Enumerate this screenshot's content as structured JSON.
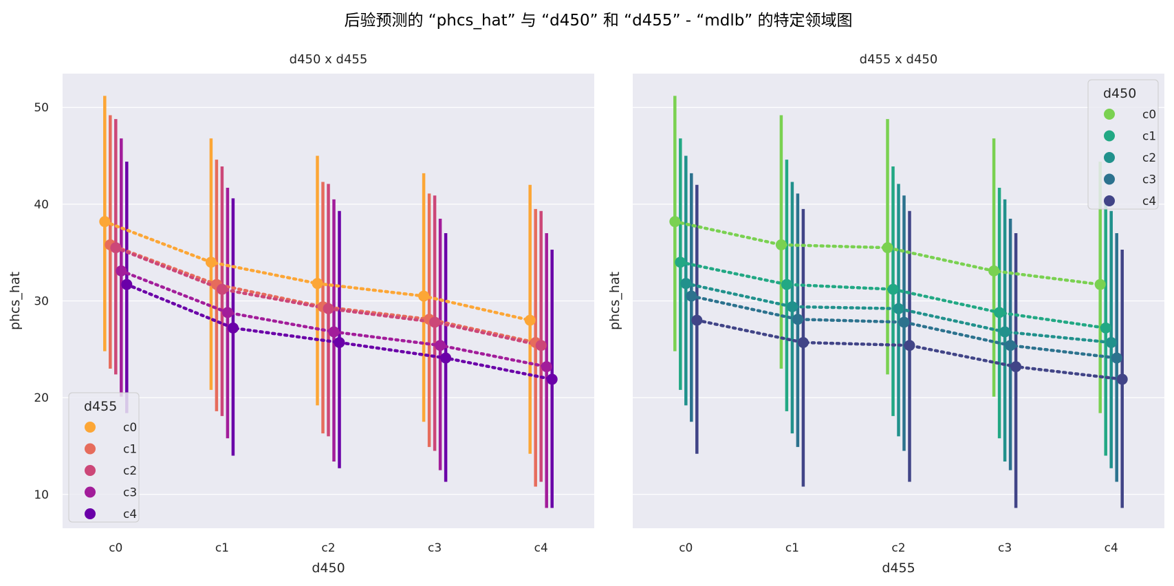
{
  "chart_data": {
    "type": "line",
    "title": "后验预测的 “phcs_hat” 与 “d450” 和 “d455” - “mdlb” 的特定领域图",
    "panels": [
      {
        "title": "d450 x d455",
        "xlabel": "d450",
        "ylabel": "phcs_hat",
        "categories": [
          "c0",
          "c1",
          "c2",
          "c3",
          "c4"
        ],
        "ylim": [
          6.5,
          53.5
        ],
        "yticks": [
          10,
          20,
          30,
          40,
          50
        ],
        "legend_title": "d455",
        "legend_position": "lower-left",
        "series": [
          {
            "name": "c0",
            "color": "#fca636",
            "values": [
              38.2,
              34.0,
              31.8,
              30.5,
              28.0
            ],
            "lower": [
              24.8,
              20.8,
              19.2,
              17.5,
              14.2
            ],
            "upper": [
              51.2,
              46.8,
              45.0,
              43.2,
              42.0
            ]
          },
          {
            "name": "c1",
            "color": "#e66c5c",
            "values": [
              35.8,
              31.7,
              29.4,
              28.1,
              25.7
            ],
            "lower": [
              23.0,
              18.6,
              16.3,
              14.9,
              10.8
            ],
            "upper": [
              49.2,
              44.6,
              42.3,
              41.1,
              39.5
            ]
          },
          {
            "name": "c2",
            "color": "#cc4778",
            "values": [
              35.5,
              31.2,
              29.2,
              27.8,
              25.4
            ],
            "lower": [
              22.4,
              18.1,
              16.0,
              14.5,
              11.3
            ],
            "upper": [
              48.8,
              43.9,
              42.1,
              40.9,
              39.3
            ]
          },
          {
            "name": "c3",
            "color": "#a21d9a",
            "values": [
              33.1,
              28.8,
              26.8,
              25.4,
              23.2
            ],
            "lower": [
              20.1,
              15.8,
              13.4,
              12.5,
              8.6
            ],
            "upper": [
              46.8,
              41.7,
              40.5,
              38.5,
              37.0
            ]
          },
          {
            "name": "c4",
            "color": "#6a00a8",
            "values": [
              31.7,
              27.2,
              25.7,
              24.1,
              21.9
            ],
            "lower": [
              18.4,
              14.0,
              12.7,
              11.3,
              8.6
            ],
            "upper": [
              44.4,
              40.6,
              39.3,
              37.0,
              35.3
            ]
          }
        ]
      },
      {
        "title": "d455 x d450",
        "xlabel": "d455",
        "ylabel": "phcs_hat",
        "categories": [
          "c0",
          "c1",
          "c2",
          "c3",
          "c4"
        ],
        "ylim": [
          6.5,
          53.5
        ],
        "yticks": [
          10,
          20,
          30,
          40,
          50
        ],
        "legend_title": "d450",
        "legend_position": "upper-right",
        "series": [
          {
            "name": "c0",
            "color": "#7ad151",
            "values": [
              38.2,
              35.8,
              35.5,
              33.1,
              31.7
            ],
            "lower": [
              24.8,
              23.0,
              22.4,
              20.1,
              18.4
            ],
            "upper": [
              51.2,
              49.2,
              48.8,
              46.8,
              44.4
            ]
          },
          {
            "name": "c1",
            "color": "#22a884",
            "values": [
              34.0,
              31.7,
              31.2,
              28.8,
              27.2
            ],
            "lower": [
              20.8,
              18.6,
              18.1,
              15.8,
              14.0
            ],
            "upper": [
              46.8,
              44.6,
              43.9,
              41.7,
              40.6
            ]
          },
          {
            "name": "c2",
            "color": "#21918c",
            "values": [
              31.8,
              29.4,
              29.2,
              26.8,
              25.7
            ],
            "lower": [
              19.2,
              16.3,
              16.0,
              13.4,
              12.7
            ],
            "upper": [
              45.0,
              42.3,
              42.1,
              40.5,
              39.3
            ]
          },
          {
            "name": "c3",
            "color": "#2c728e",
            "values": [
              30.5,
              28.1,
              27.8,
              25.4,
              24.1
            ],
            "lower": [
              17.5,
              14.9,
              14.5,
              12.5,
              11.3
            ],
            "upper": [
              43.2,
              41.1,
              40.9,
              38.5,
              37.0
            ]
          },
          {
            "name": "c4",
            "color": "#414487",
            "values": [
              28.0,
              25.7,
              25.4,
              23.2,
              21.9
            ],
            "lower": [
              14.2,
              10.8,
              11.3,
              8.6,
              8.6
            ],
            "upper": [
              42.0,
              39.5,
              39.3,
              37.0,
              35.3
            ]
          }
        ]
      }
    ]
  }
}
